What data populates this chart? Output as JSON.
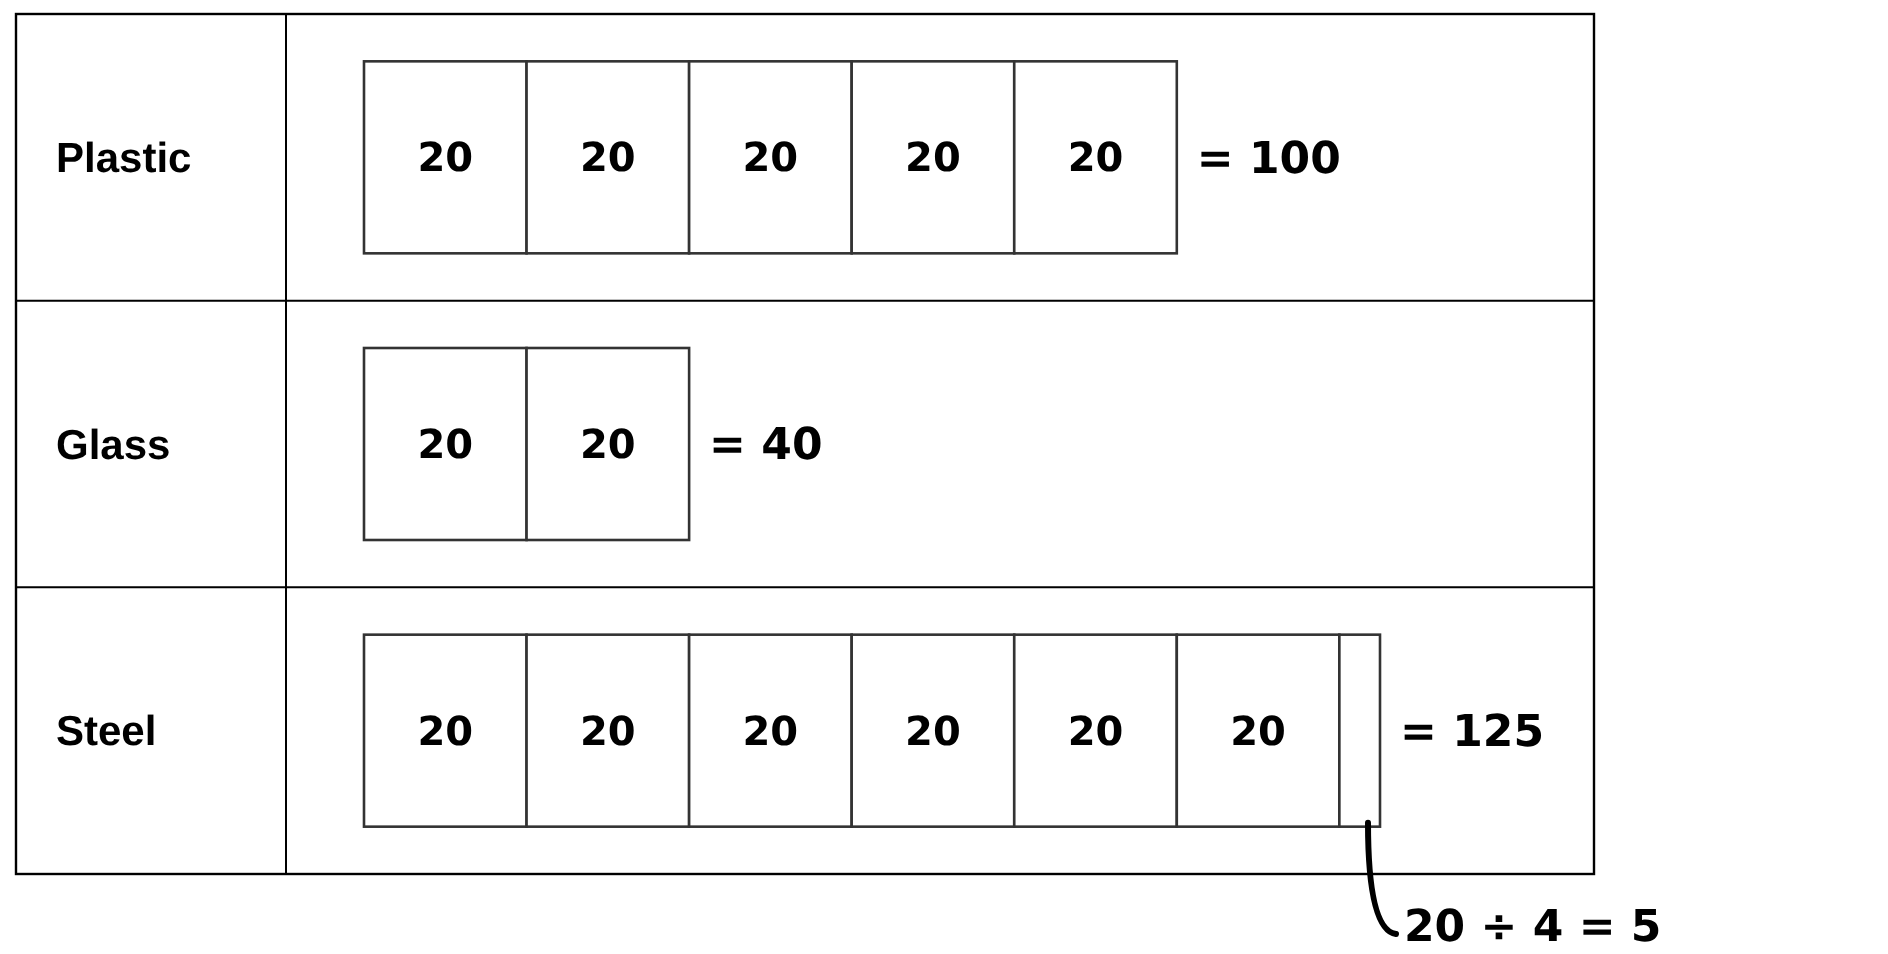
{
  "chart_data": {
    "type": "bar",
    "orientation": "horizontal",
    "stacked": true,
    "categories": [
      "Plastic",
      "Glass",
      "Steel"
    ],
    "series": [
      {
        "color": "#ffffff",
        "values": [
          20,
          20,
          20
        ],
        "value_labels": [
          "20",
          "20",
          "20"
        ]
      },
      {
        "color": "#ffffff",
        "values": [
          20,
          20,
          20
        ],
        "value_labels": [
          "20",
          "20",
          "20"
        ]
      },
      {
        "color": "#ffffff",
        "values": [
          20,
          null,
          20
        ],
        "value_labels": [
          "20",
          null,
          "20"
        ]
      },
      {
        "color": "#ffffff",
        "values": [
          20,
          null,
          20
        ],
        "value_labels": [
          "20",
          null,
          "20"
        ]
      },
      {
        "color": "#ffffff",
        "values": [
          20,
          null,
          20
        ],
        "value_labels": [
          "20",
          null,
          "20"
        ]
      },
      {
        "color": "#ffffff",
        "values": [
          null,
          null,
          20
        ],
        "value_labels": [
          null,
          null,
          "20"
        ]
      },
      {
        "color": "#ffffff",
        "values": [
          null,
          null,
          5
        ],
        "value_labels": [
          null,
          null,
          null
        ]
      }
    ],
    "totals": [
      "= 100",
      "= 40",
      "= 125"
    ],
    "annotations": [
      "20 ÷ 4 = 5"
    ]
  }
}
